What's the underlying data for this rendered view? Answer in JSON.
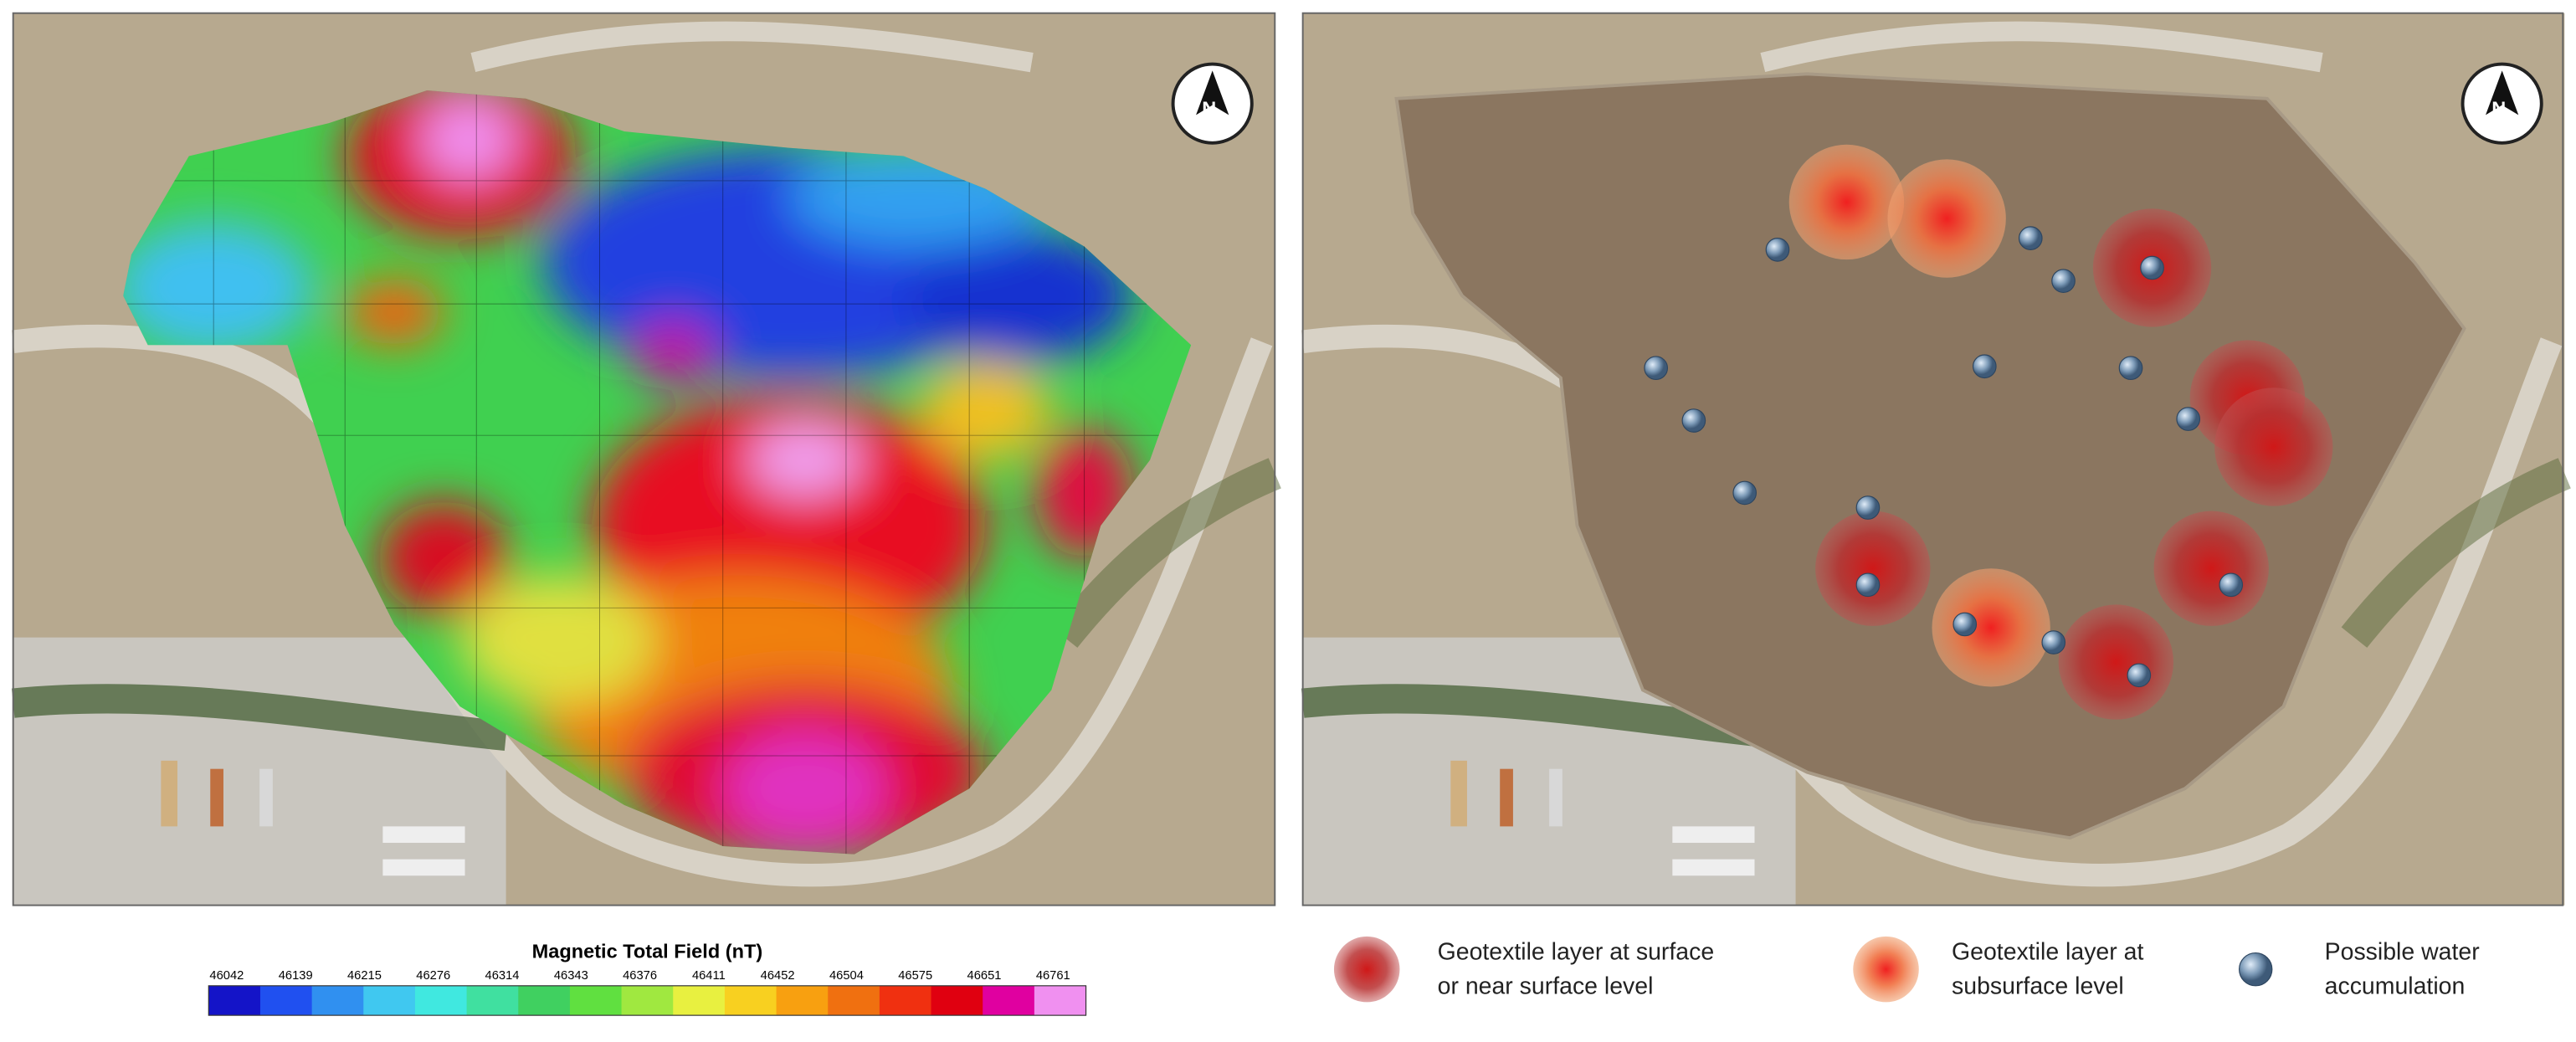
{
  "left_panel": {
    "north_label": "N",
    "colorbar": {
      "title": "Magnetic Total Field (nT)",
      "ticks": [
        46042,
        46139,
        46215,
        46276,
        46314,
        46343,
        46376,
        46411,
        46452,
        46504,
        46575,
        46651,
        46761
      ]
    }
  },
  "right_panel": {
    "north_label": "N",
    "legend": [
      {
        "label_lines": [
          "Geotextile layer at surface",
          "or near surface level"
        ]
      },
      {
        "label_lines": [
          "Geotextile layer at",
          "subsurface level"
        ]
      },
      {
        "label_lines": [
          "Possible water",
          "accumulation"
        ]
      }
    ]
  }
}
